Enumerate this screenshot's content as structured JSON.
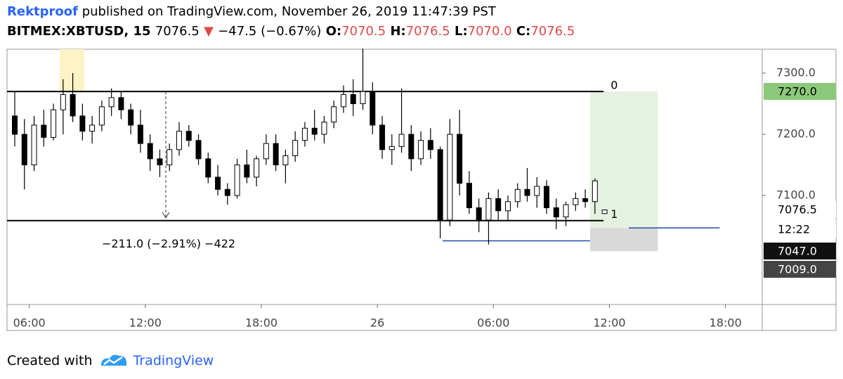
{
  "header": {
    "author": "Rektproof",
    "published": "published on TradingView.com, November 26, 2019 11:47:39 PST",
    "symbol": "BITMEX:XBTUSD, 15",
    "last": "7076.5",
    "arrow": "▼",
    "change": "−47.5 (−0.67%)",
    "o_label": "O:",
    "o": "7070.5",
    "h_label": "H:",
    "h": "7076.5",
    "l_label": "L:",
    "l": "7070.0",
    "c_label": "C:",
    "c": "7076.5"
  },
  "chart_data": {
    "type": "candlestick",
    "x": [
      5.25,
      5.75,
      6.25,
      6.75,
      7.25,
      7.75,
      8.25,
      8.75,
      9.25,
      9.75,
      10.25,
      10.75,
      11.25,
      11.75,
      12.25,
      12.75,
      13.25,
      13.75,
      14.25,
      14.75,
      15.25,
      15.75,
      16.25,
      16.75,
      17.25,
      17.75,
      18.25,
      18.75,
      19.25,
      19.75,
      20.25,
      20.75,
      21.25,
      21.75,
      22.25,
      22.75,
      23.25,
      23.75,
      24.25,
      24.75,
      25.25,
      25.75,
      26.25,
      26.75,
      27.25,
      27.75,
      28.25,
      28.75,
      29.25,
      29.75,
      30.25,
      30.75,
      31.25,
      31.75,
      32.25,
      32.75,
      33.25,
      33.75,
      34.25,
      34.75,
      35.25,
      35.75
    ],
    "candles": [
      [
        7230,
        7270,
        7180,
        7200
      ],
      [
        7200,
        7225,
        7110,
        7150
      ],
      [
        7150,
        7230,
        7140,
        7215
      ],
      [
        7215,
        7240,
        7180,
        7195
      ],
      [
        7195,
        7250,
        7190,
        7240
      ],
      [
        7240,
        7290,
        7200,
        7265
      ],
      [
        7265,
        7300,
        7220,
        7230
      ],
      [
        7230,
        7250,
        7190,
        7205
      ],
      [
        7205,
        7230,
        7185,
        7215
      ],
      [
        7215,
        7255,
        7205,
        7245
      ],
      [
        7245,
        7275,
        7230,
        7260
      ],
      [
        7260,
        7270,
        7225,
        7240
      ],
      [
        7240,
        7250,
        7200,
        7215
      ],
      [
        7215,
        7240,
        7170,
        7185
      ],
      [
        7185,
        7200,
        7140,
        7160
      ],
      [
        7160,
        7175,
        7130,
        7150
      ],
      [
        7150,
        7185,
        7140,
        7175
      ],
      [
        7175,
        7220,
        7165,
        7205
      ],
      [
        7205,
        7215,
        7180,
        7190
      ],
      [
        7190,
        7200,
        7150,
        7160
      ],
      [
        7160,
        7170,
        7120,
        7130
      ],
      [
        7130,
        7150,
        7100,
        7110
      ],
      [
        7110,
        7120,
        7085,
        7100
      ],
      [
        7100,
        7160,
        7095,
        7150
      ],
      [
        7150,
        7175,
        7120,
        7130
      ],
      [
        7130,
        7165,
        7115,
        7160
      ],
      [
        7160,
        7200,
        7150,
        7185
      ],
      [
        7185,
        7200,
        7140,
        7150
      ],
      [
        7150,
        7175,
        7120,
        7165
      ],
      [
        7165,
        7205,
        7155,
        7190
      ],
      [
        7190,
        7220,
        7180,
        7210
      ],
      [
        7210,
        7240,
        7190,
        7200
      ],
      [
        7200,
        7230,
        7185,
        7220
      ],
      [
        7220,
        7255,
        7210,
        7245
      ],
      [
        7245,
        7280,
        7235,
        7265
      ],
      [
        7265,
        7290,
        7230,
        7250
      ],
      [
        7250,
        7340,
        7240,
        7270
      ],
      [
        7270,
        7285,
        7200,
        7215
      ],
      [
        7215,
        7230,
        7160,
        7175
      ],
      [
        7175,
        7200,
        7150,
        7180
      ],
      [
        7180,
        7275,
        7170,
        7200
      ],
      [
        7200,
        7215,
        7140,
        7160
      ],
      [
        7160,
        7205,
        7150,
        7190
      ],
      [
        7190,
        7210,
        7160,
        7175
      ],
      [
        7175,
        7180,
        7030,
        7060
      ],
      [
        7060,
        7225,
        7050,
        7200
      ],
      [
        7200,
        7240,
        7100,
        7120
      ],
      [
        7120,
        7140,
        7070,
        7080
      ],
      [
        7080,
        7095,
        7040,
        7060
      ],
      [
        7060,
        7105,
        7020,
        7095
      ],
      [
        7095,
        7110,
        7060,
        7075
      ],
      [
        7075,
        7100,
        7060,
        7090
      ],
      [
        7090,
        7120,
        7080,
        7110
      ],
      [
        7110,
        7145,
        7090,
        7100
      ],
      [
        7100,
        7130,
        7080,
        7115
      ],
      [
        7115,
        7125,
        7070,
        7080
      ],
      [
        7080,
        7095,
        7045,
        7065
      ],
      [
        7065,
        7090,
        7050,
        7085
      ],
      [
        7085,
        7105,
        7075,
        7095
      ],
      [
        7095,
        7110,
        7080,
        7090
      ],
      [
        7090,
        7128,
        7070,
        7124
      ],
      [
        7070.5,
        7076.5,
        7070,
        7076.5
      ]
    ],
    "xlim": [
      4.85,
      43.9
    ],
    "ylim": [
      6922,
      7339
    ],
    "xticks": [
      {
        "value": 6,
        "label": "06:00"
      },
      {
        "value": 12,
        "label": "12:00"
      },
      {
        "value": 18,
        "label": "18:00"
      },
      {
        "value": 24,
        "label": "26"
      },
      {
        "value": 30,
        "label": "06:00"
      },
      {
        "value": 36,
        "label": "12:00"
      },
      {
        "value": 42,
        "label": "18:00"
      }
    ],
    "yticks": [
      {
        "value": 7300,
        "label": "7300.0"
      },
      {
        "value": 7200,
        "label": "7200.0"
      },
      {
        "value": 7100,
        "label": "7100.0"
      }
    ],
    "highlight": {
      "x": [
        7.57,
        8.85
      ],
      "color": "#fdf3c4"
    },
    "levels": [
      {
        "value": 7270,
        "label": "0"
      },
      {
        "value": 7059,
        "label": "1"
      }
    ],
    "levels_end": 35.7,
    "measure_x": 13.06,
    "measure_label": "−211.0 (−2.91%) −422",
    "position": {
      "x": [
        35.0,
        38.5
      ],
      "target": 7270,
      "entry": 7047,
      "stop": 7009
    },
    "blue_lines": [
      {
        "value": 7047,
        "x": [
          37.0,
          41.7
        ]
      },
      {
        "value": 7026,
        "x": [
          27.37,
          35.0
        ]
      }
    ],
    "price_badges": [
      "7270.0",
      "7076.5",
      "12:22",
      "7047.0",
      "7009.0"
    ]
  },
  "footer": {
    "created": "Created with",
    "brand": "TradingView"
  }
}
